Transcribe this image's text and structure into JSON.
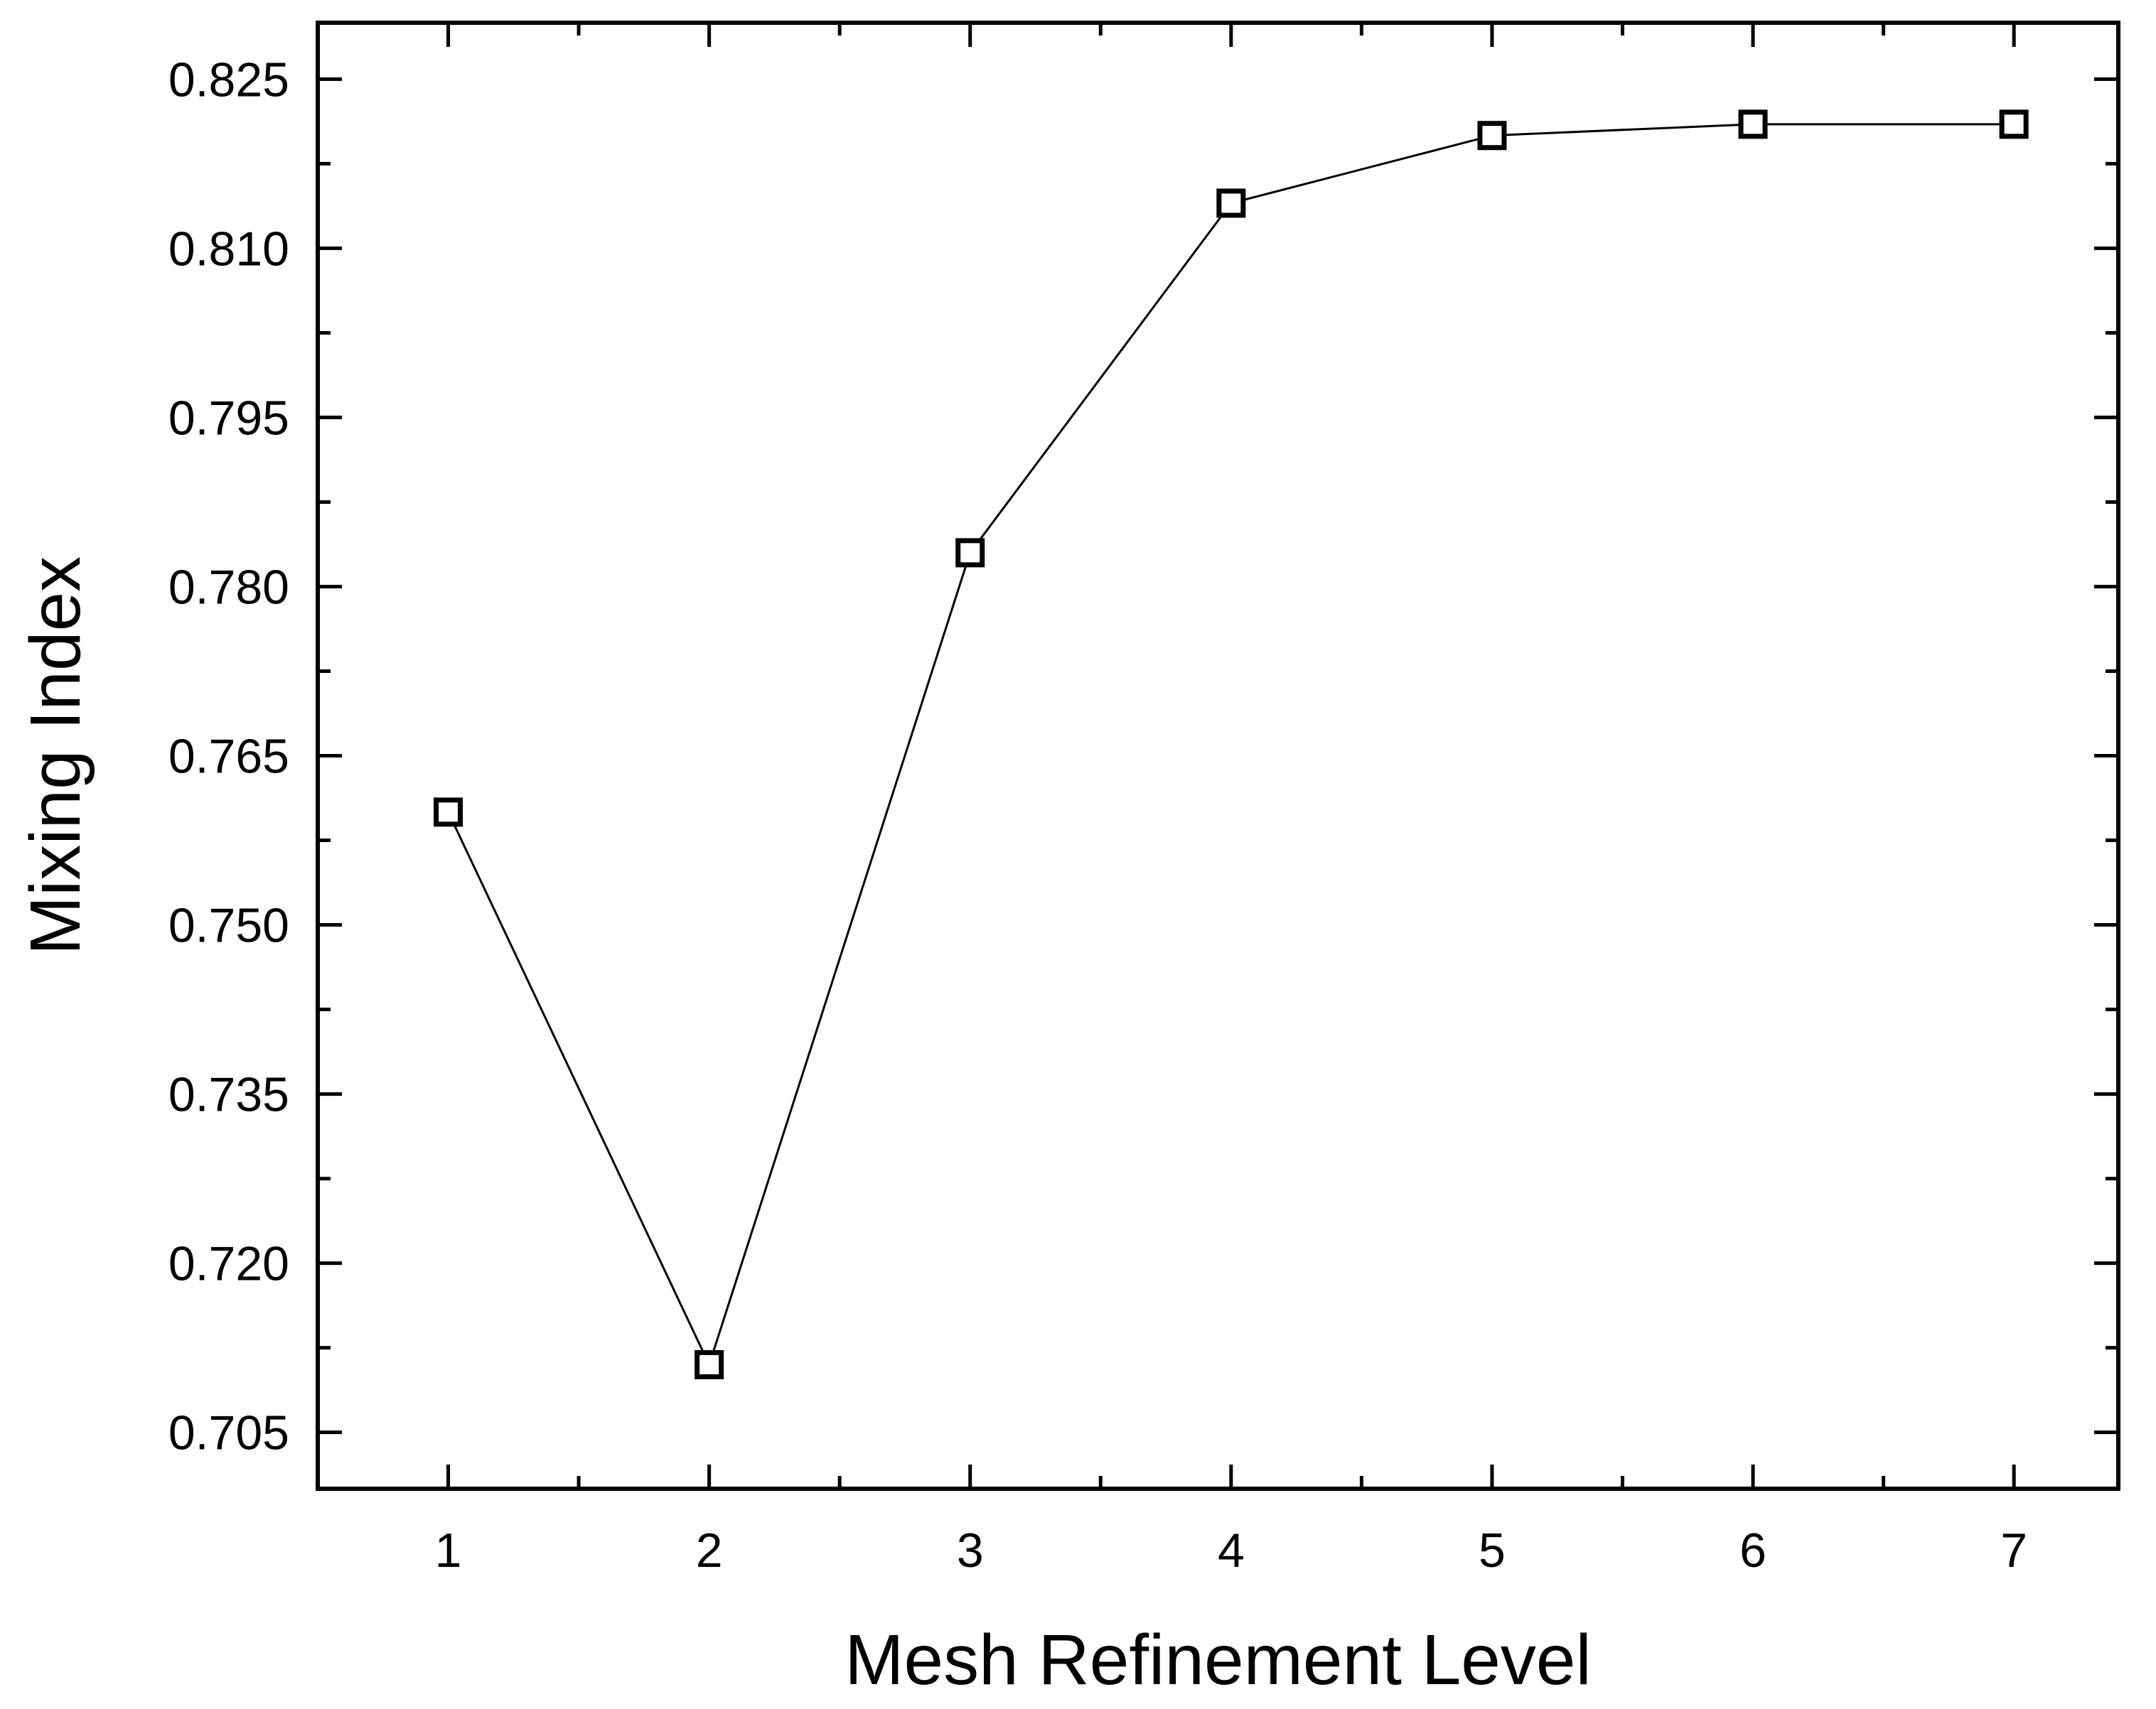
{
  "chart_data": {
    "type": "line",
    "title": "",
    "xlabel": "Mesh Refinement Level",
    "ylabel": "Mixing Index",
    "x": [
      1,
      2,
      3,
      4,
      5,
      6,
      7
    ],
    "series": [
      {
        "values": [
          0.76,
          0.711,
          0.783,
          0.814,
          0.82,
          0.821,
          0.821
        ]
      }
    ],
    "xlim": [
      0.5,
      7.4
    ],
    "ylim": [
      0.7,
      0.83
    ],
    "xticks": [
      "1",
      "2",
      "3",
      "4",
      "5",
      "6",
      "7"
    ],
    "yticks": [
      "0.705",
      "0.720",
      "0.735",
      "0.750",
      "0.765",
      "0.780",
      "0.795",
      "0.810",
      "0.825"
    ],
    "marker": "open-square",
    "line_color": "#000000",
    "grid": false,
    "legend": "none"
  }
}
